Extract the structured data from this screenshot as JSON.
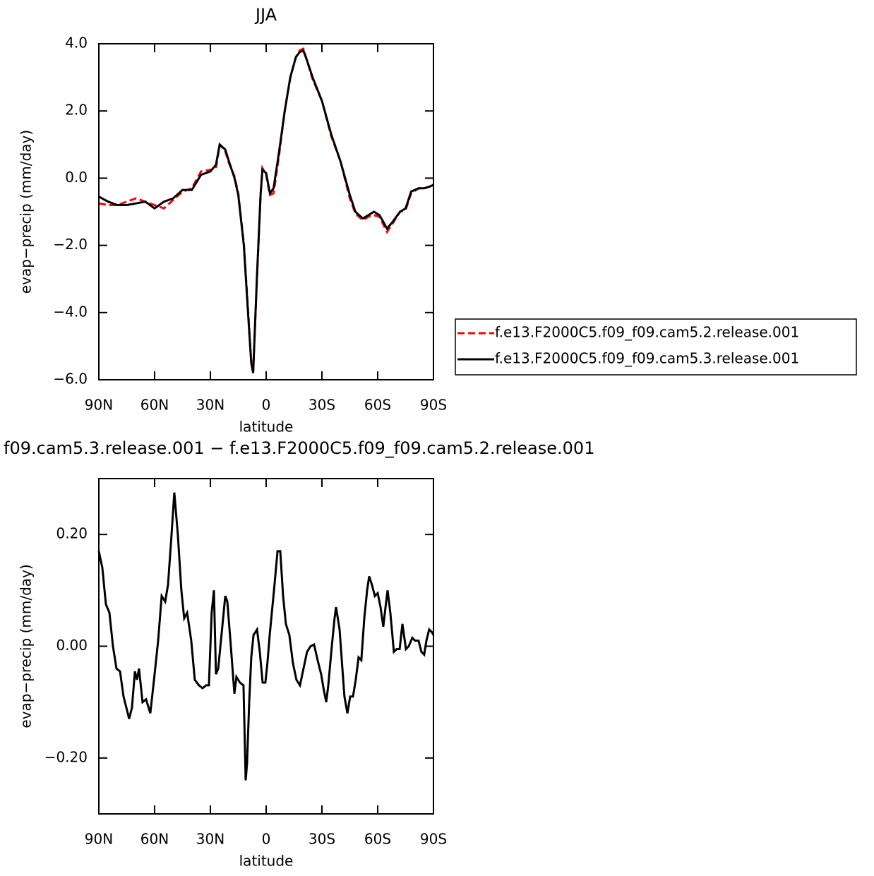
{
  "chart_data": [
    {
      "type": "line",
      "title": "JJA",
      "xlabel": "latitude",
      "ylabel": "evap−precip (mm/day)",
      "xlim": [
        90,
        -90
      ],
      "xticks": [
        {
          "value": 90,
          "label": "90N"
        },
        {
          "value": 60,
          "label": "60N"
        },
        {
          "value": 30,
          "label": "30N"
        },
        0,
        {
          "value": -30,
          "label": "30S"
        },
        {
          "value": -60,
          "label": "60S"
        },
        {
          "value": -90,
          "label": "90S"
        }
      ],
      "ylim": [
        -6,
        4
      ],
      "yticks": [
        {
          "value": 4,
          "label": "4.0"
        },
        {
          "value": 2,
          "label": "2.0"
        },
        {
          "value": 0,
          "label": "0.0"
        },
        {
          "value": -2,
          "label": "−2.0"
        },
        {
          "value": -4,
          "label": "−4.0"
        },
        {
          "value": -6,
          "label": "−6.0"
        }
      ],
      "legend": "outside-right",
      "x": [
        90,
        85,
        80,
        75,
        70,
        65,
        60,
        55,
        50,
        45,
        40,
        35,
        30,
        27,
        25,
        22,
        20,
        17,
        15,
        12,
        10,
        8,
        7,
        5,
        3,
        2,
        0,
        -2,
        -4,
        -7,
        -10,
        -13,
        -16,
        -18,
        -20,
        -22,
        -25,
        -30,
        -35,
        -40,
        -45,
        -48,
        -52,
        -55,
        -58,
        -61,
        -65,
        -68,
        -72,
        -75,
        -78,
        -82,
        -85,
        -88,
        -90
      ],
      "series": [
        {
          "name": "f.e13.F2000C5.f09_f09.cam5.2.release.001",
          "color": "#ff0000",
          "linestyle": "dashed",
          "values": [
            -0.75,
            -0.8,
            -0.8,
            -0.7,
            -0.6,
            -0.7,
            -0.8,
            -0.9,
            -0.65,
            -0.4,
            -0.3,
            0.2,
            0.25,
            0.3,
            1.0,
            0.8,
            0.45,
            0.05,
            -0.45,
            -1.95,
            -3.7,
            -5.5,
            -5.75,
            -3.1,
            -0.5,
            0.3,
            0.1,
            -0.5,
            -0.45,
            0.7,
            2.0,
            3.0,
            3.6,
            3.8,
            3.85,
            3.5,
            2.95,
            2.3,
            1.25,
            0.5,
            -0.6,
            -1.05,
            -1.25,
            -1.15,
            -1.1,
            -1.15,
            -1.6,
            -1.35,
            -1.0,
            -0.95,
            -0.45,
            -0.3,
            -0.3,
            -0.25,
            -0.2
          ]
        },
        {
          "name": "f.e13.F2000C5.f09_f09.cam5.3.release.001",
          "color": "#000000",
          "linestyle": "solid",
          "values": [
            -0.55,
            -0.7,
            -0.8,
            -0.8,
            -0.75,
            -0.7,
            -0.9,
            -0.7,
            -0.6,
            -0.35,
            -0.35,
            0.1,
            0.2,
            0.4,
            1.0,
            0.85,
            0.5,
            0.0,
            -0.5,
            -2.0,
            -3.8,
            -5.5,
            -5.8,
            -3.0,
            -0.5,
            0.25,
            0.15,
            -0.45,
            -0.3,
            0.8,
            2.0,
            3.0,
            3.6,
            3.75,
            3.8,
            3.5,
            3.0,
            2.3,
            1.3,
            0.5,
            -0.5,
            -1.0,
            -1.2,
            -1.1,
            -1.0,
            -1.1,
            -1.5,
            -1.3,
            -1.0,
            -0.9,
            -0.4,
            -0.3,
            -0.3,
            -0.25,
            -0.2
          ]
        }
      ]
    },
    {
      "type": "line",
      "title": "f09.cam5.3.release.001 − f.e13.F2000C5.f09_f09.cam5.2.release.001",
      "xlabel": "latitude",
      "ylabel": "evap−precip (mm/day)",
      "xlim": [
        90,
        -90
      ],
      "xticks": [
        {
          "value": 90,
          "label": "90N"
        },
        {
          "value": 60,
          "label": "60N"
        },
        {
          "value": 30,
          "label": "30N"
        },
        0,
        {
          "value": -30,
          "label": "30S"
        },
        {
          "value": -60,
          "label": "60S"
        },
        {
          "value": -90,
          "label": "90S"
        }
      ],
      "ylim": [
        -0.3,
        0.3
      ],
      "yticks": [
        {
          "value": 0.2,
          "label": "0.20"
        },
        {
          "value": 0,
          "label": "0.00"
        },
        {
          "value": -0.2,
          "label": "−0.20"
        }
      ],
      "x": [
        90,
        88.1,
        86.2,
        84.3,
        82.4,
        80.5,
        78.6,
        76.7,
        74.8,
        73.7,
        72.2,
        70.6,
        69.5,
        68.4,
        66.5,
        64.6,
        62.3,
        60,
        58.1,
        56.2,
        54.3,
        52.8,
        50.9,
        49.4,
        47.5,
        45.6,
        44.1,
        42.5,
        40.3,
        38.4,
        36.1,
        34.2,
        32.3,
        30.8,
        29.3,
        28.1,
        27,
        25.8,
        23.6,
        22,
        20.9,
        19,
        17.1,
        16,
        14.1,
        12.2,
        11,
        10.3,
        9.1,
        8,
        6.8,
        4.9,
        3.4,
        1.9,
        0.4,
        -0.7,
        -1.9,
        -4.2,
        -6.1,
        -7.6,
        -9.1,
        -10.6,
        -12.5,
        -14.4,
        -16.3,
        -18.2,
        -20.1,
        -22,
        -23.9,
        -25.8,
        -27.7,
        -29.6,
        -31.1,
        -32.3,
        -33.4,
        -35.3,
        -36.8,
        -37.6,
        -39.5,
        -41,
        -42.1,
        -43.7,
        -45.2,
        -46.7,
        -48.2,
        -49.7,
        -51.2,
        -52.8,
        -54.3,
        -55.4,
        -56.9,
        -58.5,
        -60,
        -61.5,
        -63,
        -64.2,
        -65.3,
        -66.8,
        -68.7,
        -70.2,
        -71.8,
        -73.3,
        -75.2,
        -76.7,
        -78.6,
        -80.1,
        -82,
        -83.5,
        -85,
        -86.2,
        -87.7,
        -89.2,
        -90
      ],
      "series": [
        {
          "color": "#000000",
          "linestyle": "solid",
          "values": [
            0.17,
            0.14,
            0.075,
            0.06,
            0.0,
            -0.04,
            -0.045,
            -0.09,
            -0.115,
            -0.13,
            -0.11,
            -0.045,
            -0.06,
            -0.04,
            -0.1,
            -0.095,
            -0.12,
            -0.05,
            0.01,
            0.09,
            0.08,
            0.11,
            0.2,
            0.275,
            0.2,
            0.1,
            0.05,
            0.06,
            0.01,
            -0.06,
            -0.07,
            -0.075,
            -0.07,
            -0.07,
            0.06,
            0.1,
            -0.05,
            -0.04,
            0.035,
            0.09,
            0.08,
            0.0,
            -0.085,
            -0.055,
            -0.065,
            -0.07,
            -0.24,
            -0.21,
            -0.1,
            -0.02,
            0.02,
            0.03,
            -0.01,
            -0.065,
            -0.065,
            -0.03,
            0.02,
            0.1,
            0.17,
            0.17,
            0.09,
            0.04,
            0.02,
            -0.03,
            -0.06,
            -0.07,
            -0.04,
            -0.01,
            0.0,
            0.003,
            -0.025,
            -0.05,
            -0.08,
            -0.1,
            -0.07,
            0.0,
            0.05,
            0.07,
            0.03,
            -0.04,
            -0.09,
            -0.12,
            -0.09,
            -0.09,
            -0.06,
            -0.02,
            -0.025,
            0.05,
            0.1,
            0.125,
            0.11,
            0.09,
            0.095,
            0.07,
            0.035,
            0.07,
            0.1,
            0.06,
            -0.01,
            -0.005,
            -0.005,
            0.04,
            -0.005,
            0.0,
            0.015,
            0.01,
            0.01,
            -0.01,
            -0.015,
            0.01,
            0.03,
            0.025,
            0.02
          ]
        }
      ]
    }
  ]
}
